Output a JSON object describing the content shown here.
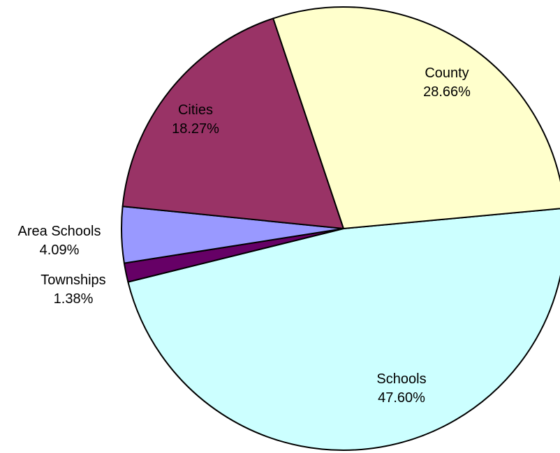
{
  "chart_data": {
    "type": "pie",
    "title": "",
    "slices": [
      {
        "label": "Schools",
        "value": 47.6,
        "percent_label": "47.60%",
        "color": "#CCFFFF"
      },
      {
        "label": "Townships",
        "value": 1.38,
        "percent_label": "1.38%",
        "color": "#660066"
      },
      {
        "label": "Area Schools",
        "value": 4.09,
        "percent_label": "4.09%",
        "color": "#9999FF"
      },
      {
        "label": "Cities",
        "value": 18.27,
        "percent_label": "18.27%",
        "color": "#993366"
      },
      {
        "label": "County",
        "value": 28.66,
        "percent_label": "28.66%",
        "color": "#FFFFCC"
      }
    ]
  }
}
